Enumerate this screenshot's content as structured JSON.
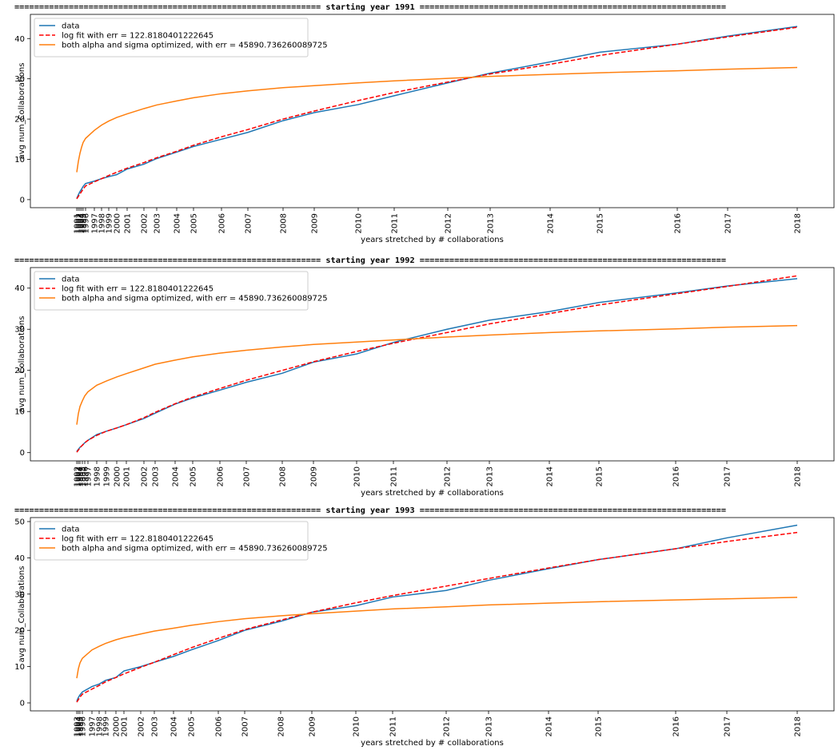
{
  "chart_data": [
    {
      "type": "line",
      "title": "============================================================== starting year 1991 ==============================================================",
      "xlabel": "years stretched by # collaborations",
      "ylabel": "avg num_Collaborations",
      "legend": "upper left",
      "xlim": [
        -58,
        947
      ],
      "ylim": [
        -2,
        46
      ],
      "yticks": [
        0,
        10,
        20,
        30,
        40
      ],
      "xticks": [
        {
          "value": 0,
          "label": "1991"
        },
        {
          "value": 2,
          "label": "1992"
        },
        {
          "value": 4,
          "label": "1993"
        },
        {
          "value": 6,
          "label": "1994"
        },
        {
          "value": 8,
          "label": "1995"
        },
        {
          "value": 11,
          "label": "1996"
        },
        {
          "value": 22,
          "label": "1997"
        },
        {
          "value": 31,
          "label": "1998"
        },
        {
          "value": 40,
          "label": "1999"
        },
        {
          "value": 50,
          "label": "2000"
        },
        {
          "value": 63,
          "label": "2001"
        },
        {
          "value": 84,
          "label": "2002"
        },
        {
          "value": 100,
          "label": "2003"
        },
        {
          "value": 125,
          "label": "2004"
        },
        {
          "value": 146,
          "label": "2005"
        },
        {
          "value": 181,
          "label": "2006"
        },
        {
          "value": 214,
          "label": "2007"
        },
        {
          "value": 258,
          "label": "2008"
        },
        {
          "value": 297,
          "label": "2009"
        },
        {
          "value": 352,
          "label": "2010"
        },
        {
          "value": 397,
          "label": "2011"
        },
        {
          "value": 464,
          "label": "2012"
        },
        {
          "value": 517,
          "label": "2013"
        },
        {
          "value": 592,
          "label": "2014"
        },
        {
          "value": 654,
          "label": "2015"
        },
        {
          "value": 751,
          "label": "2016"
        },
        {
          "value": 814,
          "label": "2017"
        },
        {
          "value": 901,
          "label": "2018"
        }
      ],
      "x": [
        0,
        2,
        4,
        6,
        8,
        11,
        22,
        31,
        40,
        50,
        63,
        84,
        100,
        125,
        146,
        181,
        214,
        258,
        297,
        352,
        397,
        464,
        517,
        592,
        654,
        751,
        814,
        901
      ],
      "series": [
        {
          "name": "data",
          "color": "#1f77b4",
          "linestyle": "solid",
          "values": [
            0.3,
            1.2,
            2,
            2.6,
            3.3,
            4,
            4.6,
            5.2,
            5.7,
            6.2,
            7.6,
            8.8,
            10.2,
            11.8,
            13.2,
            15,
            16.7,
            19.6,
            21.6,
            23.6,
            25.8,
            29,
            31.4,
            34.2,
            36.6,
            38.6,
            40.6,
            43
          ]
        },
        {
          "name": "log fit with err = 122.8180401222645",
          "color": "#ff0000",
          "linestyle": "dashed",
          "values": [
            0.2,
            0.8,
            1.4,
            2,
            2.6,
            3.4,
            4.4,
            5.2,
            6,
            6.8,
            7.8,
            9.2,
            10.4,
            12,
            13.5,
            15.6,
            17.4,
            20,
            22,
            24.6,
            26.6,
            29.2,
            31.2,
            33.6,
            35.8,
            38.6,
            40.4,
            42.8
          ]
        },
        {
          "name": "both alpha and sigma optimized, with err = 45890.736260089725",
          "color": "#ff7f0e",
          "linestyle": "solid",
          "values": [
            6.8,
            9.5,
            11.5,
            13,
            14.2,
            15.2,
            17.2,
            18.5,
            19.5,
            20.4,
            21.3,
            22.6,
            23.5,
            24.5,
            25.3,
            26.3,
            27,
            27.8,
            28.3,
            29,
            29.5,
            30.1,
            30.6,
            31.1,
            31.5,
            32,
            32.4,
            32.8
          ]
        }
      ]
    },
    {
      "type": "line",
      "title": "============================================================== starting year 1992 ==============================================================",
      "xlabel": "years stretched by # collaborations",
      "ylabel": "avg num_Collaborations",
      "legend": "upper left",
      "xlim": [
        -58,
        947
      ],
      "ylim": [
        -2,
        45
      ],
      "yticks": [
        0,
        10,
        20,
        30,
        40
      ],
      "xticks": [
        {
          "value": 0,
          "label": "1992"
        },
        {
          "value": 2,
          "label": "1993"
        },
        {
          "value": 4,
          "label": "1994"
        },
        {
          "value": 7,
          "label": "1995"
        },
        {
          "value": 10,
          "label": "1996"
        },
        {
          "value": 14,
          "label": "1997"
        },
        {
          "value": 25,
          "label": "1998"
        },
        {
          "value": 37,
          "label": "1999"
        },
        {
          "value": 50,
          "label": "2000"
        },
        {
          "value": 62,
          "label": "2001"
        },
        {
          "value": 84,
          "label": "2002"
        },
        {
          "value": 98,
          "label": "2003"
        },
        {
          "value": 123,
          "label": "2004"
        },
        {
          "value": 145,
          "label": "2005"
        },
        {
          "value": 179,
          "label": "2006"
        },
        {
          "value": 212,
          "label": "2007"
        },
        {
          "value": 257,
          "label": "2008"
        },
        {
          "value": 296,
          "label": "2009"
        },
        {
          "value": 350,
          "label": "2010"
        },
        {
          "value": 396,
          "label": "2011"
        },
        {
          "value": 463,
          "label": "2012"
        },
        {
          "value": 516,
          "label": "2013"
        },
        {
          "value": 591,
          "label": "2014"
        },
        {
          "value": 653,
          "label": "2015"
        },
        {
          "value": 749,
          "label": "2016"
        },
        {
          "value": 813,
          "label": "2017"
        },
        {
          "value": 901,
          "label": "2018"
        }
      ],
      "x": [
        0,
        2,
        4,
        7,
        10,
        14,
        25,
        37,
        50,
        62,
        84,
        98,
        123,
        145,
        179,
        212,
        257,
        296,
        350,
        396,
        463,
        516,
        591,
        653,
        749,
        813,
        901
      ],
      "series": [
        {
          "name": "data",
          "color": "#1f77b4",
          "linestyle": "solid",
          "values": [
            0.3,
            0.8,
            1.3,
            1.8,
            2.4,
            3,
            4.4,
            5.2,
            6,
            6.8,
            8.3,
            9.6,
            11.8,
            13.3,
            15.2,
            17.1,
            19.3,
            22,
            24,
            26.8,
            30,
            32.2,
            34.3,
            36.5,
            38.8,
            40.5,
            42.3
          ]
        },
        {
          "name": "log fit with err = 122.8180401222645",
          "color": "#ff0000",
          "linestyle": "dashed",
          "values": [
            0.1,
            0.6,
            1.2,
            1.8,
            2.4,
            3,
            4.2,
            5.2,
            6,
            6.8,
            8.5,
            9.8,
            11.9,
            13.5,
            15.6,
            17.6,
            20,
            22.1,
            24.6,
            26.6,
            29.2,
            31.3,
            33.8,
            35.9,
            38.6,
            40.4,
            43
          ]
        },
        {
          "name": "both alpha and sigma optimized, with err = 45890.736260089725",
          "color": "#ff7f0e",
          "linestyle": "solid",
          "values": [
            6.8,
            9.5,
            11.2,
            12.6,
            13.8,
            14.8,
            16.4,
            17.4,
            18.4,
            19.2,
            20.6,
            21.5,
            22.5,
            23.3,
            24.2,
            24.9,
            25.7,
            26.3,
            26.9,
            27.4,
            28.1,
            28.6,
            29.2,
            29.6,
            30.1,
            30.5,
            30.9
          ]
        }
      ]
    },
    {
      "type": "line",
      "title": "============================================================== starting year 1993 ==============================================================",
      "xlabel": "years stretched by # collaborations",
      "ylabel": "avg num_Collaborations",
      "legend": "upper left",
      "xlim": [
        -58,
        947
      ],
      "ylim": [
        -2.2,
        51.1
      ],
      "yticks": [
        0,
        10,
        20,
        30,
        40,
        50
      ],
      "xticks": [
        {
          "value": 0,
          "label": "1993"
        },
        {
          "value": 2,
          "label": "1994"
        },
        {
          "value": 4,
          "label": "1995"
        },
        {
          "value": 7,
          "label": "1996"
        },
        {
          "value": 19,
          "label": "1997"
        },
        {
          "value": 28,
          "label": "1998"
        },
        {
          "value": 36,
          "label": "1999"
        },
        {
          "value": 49,
          "label": "2000"
        },
        {
          "value": 59,
          "label": "2001"
        },
        {
          "value": 80,
          "label": "2002"
        },
        {
          "value": 97,
          "label": "2003"
        },
        {
          "value": 121,
          "label": "2004"
        },
        {
          "value": 143,
          "label": "2005"
        },
        {
          "value": 177,
          "label": "2006"
        },
        {
          "value": 210,
          "label": "2007"
        },
        {
          "value": 255,
          "label": "2008"
        },
        {
          "value": 294,
          "label": "2009"
        },
        {
          "value": 349,
          "label": "2010"
        },
        {
          "value": 395,
          "label": "2011"
        },
        {
          "value": 462,
          "label": "2012"
        },
        {
          "value": 515,
          "label": "2013"
        },
        {
          "value": 590,
          "label": "2014"
        },
        {
          "value": 652,
          "label": "2015"
        },
        {
          "value": 749,
          "label": "2016"
        },
        {
          "value": 813,
          "label": "2017"
        },
        {
          "value": 901,
          "label": "2018"
        }
      ],
      "x": [
        0,
        2,
        4,
        7,
        19,
        28,
        36,
        49,
        59,
        80,
        97,
        121,
        143,
        177,
        210,
        255,
        294,
        349,
        395,
        462,
        515,
        590,
        652,
        749,
        813,
        901
      ],
      "series": [
        {
          "name": "data",
          "color": "#1f77b4",
          "linestyle": "solid",
          "values": [
            0.5,
            1.5,
            2.2,
            3,
            4.5,
            5.2,
            6.2,
            7,
            8.8,
            10,
            11.2,
            12.8,
            14.6,
            17.2,
            20,
            22.5,
            25,
            26.8,
            29.2,
            31,
            33.8,
            37,
            39.5,
            42.5,
            45.5,
            49
          ]
        },
        {
          "name": "log fit with err = 122.8180401222645",
          "color": "#ff0000",
          "linestyle": "dashed",
          "values": [
            0.2,
            0.9,
            1.6,
            2.4,
            3.8,
            4.8,
            5.8,
            7,
            8,
            9.8,
            11.2,
            13.3,
            15.2,
            17.8,
            20.2,
            22.8,
            25,
            27.6,
            29.6,
            32.2,
            34.3,
            37.2,
            39.5,
            42.5,
            44.5,
            47
          ]
        },
        {
          "name": "both alpha and sigma optimized, with err = 45890.736260089725",
          "color": "#ff7f0e",
          "linestyle": "solid",
          "values": [
            6.8,
            9.4,
            11,
            12.3,
            14.6,
            15.6,
            16.4,
            17.4,
            18,
            19,
            19.8,
            20.6,
            21.4,
            22.4,
            23.2,
            24,
            24.6,
            25.3,
            25.9,
            26.5,
            27,
            27.5,
            27.9,
            28.4,
            28.7,
            29.1
          ]
        }
      ]
    }
  ]
}
